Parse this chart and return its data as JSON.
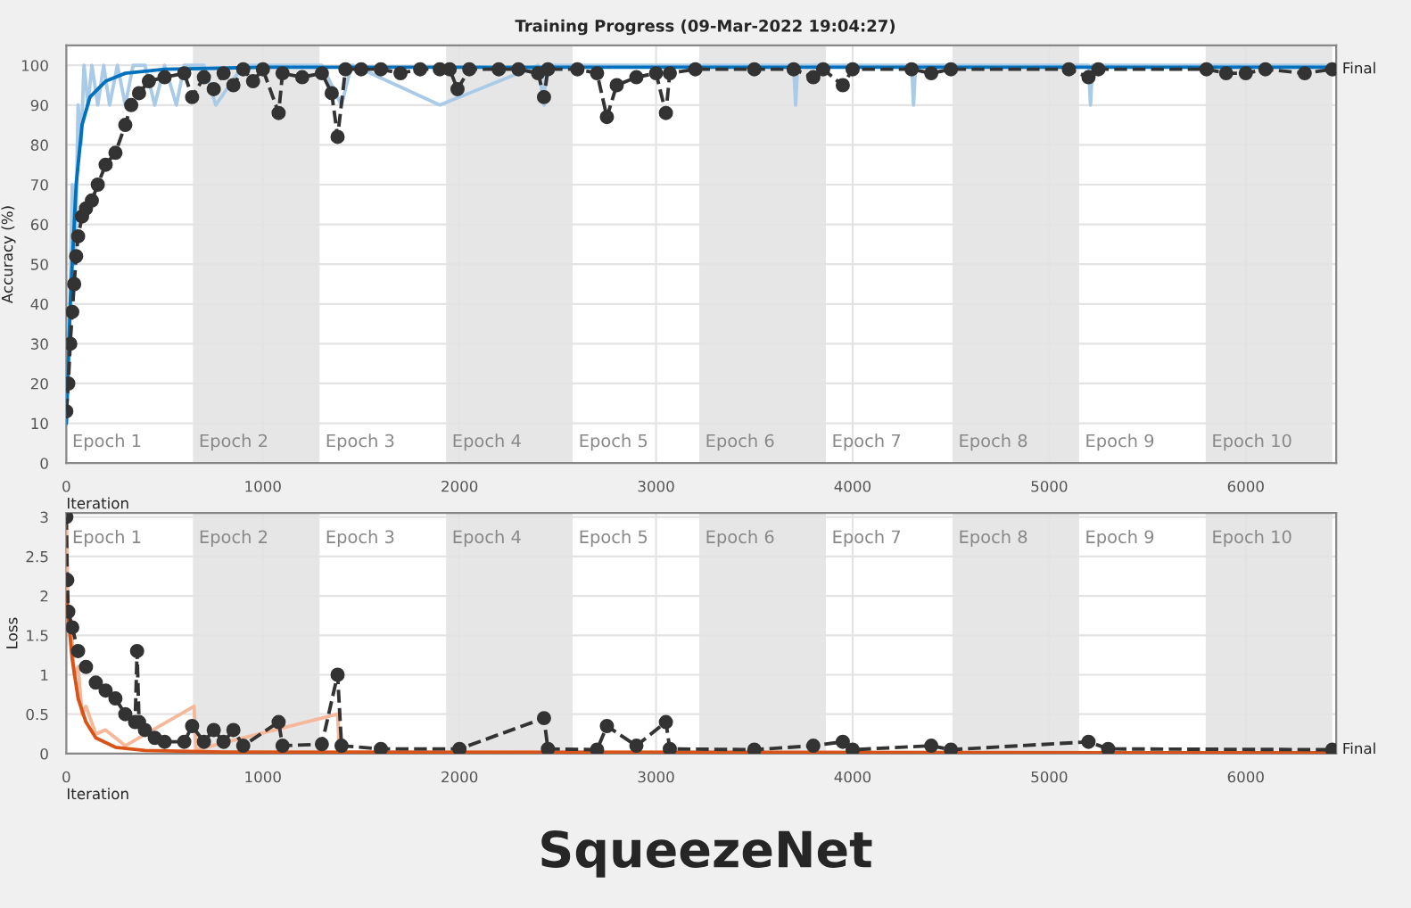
{
  "chart_data": [
    {
      "type": "line",
      "title": "Training Progress (09-Mar-2022 19:04:27)",
      "xlabel": "Iteration",
      "ylabel": "Accuracy (%)",
      "xlim": [
        0,
        6460
      ],
      "xticks": [
        0,
        1000,
        2000,
        3000,
        4000,
        5000,
        6000
      ],
      "ylim": [
        0,
        105
      ],
      "yticks": [
        0,
        10,
        20,
        30,
        40,
        50,
        60,
        70,
        80,
        90,
        100
      ],
      "grid": true,
      "series": [
        {
          "color": "#a9cbe8",
          "marker": "none",
          "line_style": "solid",
          "x": [
            0,
            15,
            30,
            45,
            60,
            75,
            90,
            110,
            130,
            160,
            190,
            220,
            260,
            300,
            340,
            400,
            450,
            500,
            560,
            600,
            700,
            760,
            900,
            1000,
            1300,
            1400,
            1450,
            1460,
            1900,
            2400,
            2430,
            2440,
            3700,
            3710,
            3720,
            4300,
            4310,
            4320,
            5200,
            5210,
            5220,
            6440
          ],
          "values": [
            10,
            30,
            70,
            50,
            90,
            80,
            100,
            90,
            100,
            90,
            100,
            90,
            100,
            90,
            100,
            100,
            90,
            100,
            90,
            100,
            100,
            90,
            100,
            100,
            100,
            90,
            100,
            100,
            90,
            100,
            90,
            100,
            100,
            90,
            100,
            100,
            90,
            100,
            100,
            90,
            100,
            100
          ]
        },
        {
          "color": "#0072bd",
          "marker": "none",
          "line_style": "solid",
          "x": [
            0,
            20,
            50,
            80,
            120,
            200,
            300,
            500,
            1000,
            2000,
            3000,
            4000,
            5000,
            6000,
            6440
          ],
          "values": [
            10,
            40,
            70,
            85,
            92,
            96,
            98,
            99,
            99.5,
            99.5,
            99.5,
            99.5,
            99.5,
            99.5,
            99.5
          ]
        },
        {
          "color": "#333333",
          "marker": "circle",
          "line_style": "dashed",
          "x": [
            0,
            10,
            20,
            30,
            40,
            50,
            60,
            80,
            100,
            130,
            160,
            200,
            250,
            300,
            330,
            370,
            420,
            500,
            600,
            640,
            700,
            750,
            800,
            850,
            900,
            950,
            1000,
            1080,
            1100,
            1200,
            1300,
            1350,
            1380,
            1420,
            1500,
            1600,
            1700,
            1800,
            1900,
            1950,
            1990,
            2050,
            2200,
            2300,
            2400,
            2430,
            2450,
            2600,
            2700,
            2750,
            2800,
            2900,
            3000,
            3050,
            3070,
            3200,
            3500,
            3700,
            3800,
            3850,
            3950,
            4000,
            4300,
            4400,
            4500,
            5100,
            5200,
            5250,
            5800,
            5900,
            6000,
            6100,
            6300,
            6440
          ],
          "values": [
            13,
            20,
            30,
            38,
            45,
            52,
            57,
            62,
            64,
            66,
            70,
            75,
            78,
            85,
            90,
            93,
            96,
            97,
            98,
            92,
            97,
            94,
            98,
            95,
            99,
            96,
            99,
            88,
            98,
            97,
            98,
            93,
            82,
            99,
            99,
            99,
            98,
            99,
            99,
            99,
            94,
            99,
            99,
            99,
            98,
            92,
            99,
            99,
            98,
            87,
            95,
            97,
            98,
            88,
            98,
            99,
            99,
            99,
            97,
            99,
            95,
            99,
            99,
            98,
            99,
            99,
            97,
            99,
            99,
            98,
            98,
            99,
            98,
            99
          ]
        }
      ],
      "bands": [
        {
          "axis": "x",
          "from": 644,
          "to": 1288,
          "label": "Epoch 2",
          "color": "#e6e6e6"
        },
        {
          "axis": "x",
          "from": 1932,
          "to": 2576,
          "label": "Epoch 4",
          "color": "#e6e6e6"
        },
        {
          "axis": "x",
          "from": 3220,
          "to": 3864,
          "label": "Epoch 6",
          "color": "#e6e6e6"
        },
        {
          "axis": "x",
          "from": 4508,
          "to": 5152,
          "label": "Epoch 8",
          "color": "#e6e6e6"
        },
        {
          "axis": "x",
          "from": 5796,
          "to": 6440,
          "label": "Epoch 10",
          "color": "#e6e6e6"
        }
      ],
      "annotations": [
        {
          "text": "Final",
          "x": 6440,
          "y": 99
        },
        "Epoch 1",
        "Epoch 3",
        "Epoch 5",
        "Epoch 7",
        "Epoch 9"
      ]
    },
    {
      "type": "line",
      "xlabel": "Iteration",
      "ylabel": "Loss",
      "xlim": [
        0,
        6460
      ],
      "xticks": [
        0,
        1000,
        2000,
        3000,
        4000,
        5000,
        6000
      ],
      "ylim": [
        0,
        3.05
      ],
      "yticks": [
        0,
        0.5,
        1,
        1.5,
        2,
        2.5,
        3
      ],
      "grid": true,
      "series": [
        {
          "color": "#f5b89a",
          "marker": "none",
          "line_style": "solid",
          "x": [
            0,
            10,
            20,
            40,
            60,
            80,
            100,
            150,
            200,
            300,
            650,
            660,
            1380,
            1390,
            6440
          ],
          "values": [
            3,
            1.6,
            1.8,
            1.0,
            1.1,
            0.5,
            0.6,
            0.25,
            0.3,
            0.1,
            0.6,
            0.05,
            0.5,
            0.02,
            0.01
          ]
        },
        {
          "color": "#d95319",
          "marker": "none",
          "line_style": "solid",
          "x": [
            0,
            30,
            60,
            100,
            150,
            250,
            400,
            800,
            6440
          ],
          "values": [
            2.0,
            1.2,
            0.7,
            0.4,
            0.2,
            0.08,
            0.04,
            0.02,
            0.01
          ]
        },
        {
          "color": "#333333",
          "marker": "circle",
          "line_style": "dashed",
          "x": [
            0,
            5,
            10,
            30,
            60,
            100,
            150,
            200,
            250,
            300,
            350,
            360,
            370,
            400,
            450,
            500,
            600,
            640,
            700,
            750,
            800,
            850,
            900,
            1080,
            1100,
            1300,
            1380,
            1400,
            1600,
            2000,
            2430,
            2450,
            2700,
            2750,
            2900,
            3050,
            3070,
            3500,
            3800,
            3950,
            4000,
            4400,
            4500,
            5200,
            5300,
            6440
          ],
          "values": [
            3,
            2.2,
            1.8,
            1.6,
            1.3,
            1.1,
            0.9,
            0.8,
            0.7,
            0.5,
            0.4,
            1.3,
            0.4,
            0.3,
            0.2,
            0.15,
            0.15,
            0.35,
            0.15,
            0.3,
            0.15,
            0.3,
            0.1,
            0.4,
            0.1,
            0.12,
            1.0,
            0.1,
            0.06,
            0.06,
            0.45,
            0.06,
            0.05,
            0.35,
            0.1,
            0.4,
            0.06,
            0.05,
            0.1,
            0.15,
            0.05,
            0.1,
            0.05,
            0.15,
            0.06,
            0.05
          ]
        }
      ],
      "bands": [
        {
          "axis": "x",
          "from": 644,
          "to": 1288,
          "label": "Epoch 2",
          "color": "#e6e6e6"
        },
        {
          "axis": "x",
          "from": 1932,
          "to": 2576,
          "label": "Epoch 4",
          "color": "#e6e6e6"
        },
        {
          "axis": "x",
          "from": 3220,
          "to": 3864,
          "label": "Epoch 6",
          "color": "#e6e6e6"
        },
        {
          "axis": "x",
          "from": 4508,
          "to": 5152,
          "label": "Epoch 8",
          "color": "#e6e6e6"
        },
        {
          "axis": "x",
          "from": 5796,
          "to": 6440,
          "label": "Epoch 10",
          "color": "#e6e6e6"
        }
      ],
      "annotations": [
        {
          "text": "Final",
          "x": 6440,
          "y": 0.05
        },
        "Epoch 1",
        "Epoch 3",
        "Epoch 5",
        "Epoch 7",
        "Epoch 9",
        "SqueezeNet"
      ]
    }
  ]
}
